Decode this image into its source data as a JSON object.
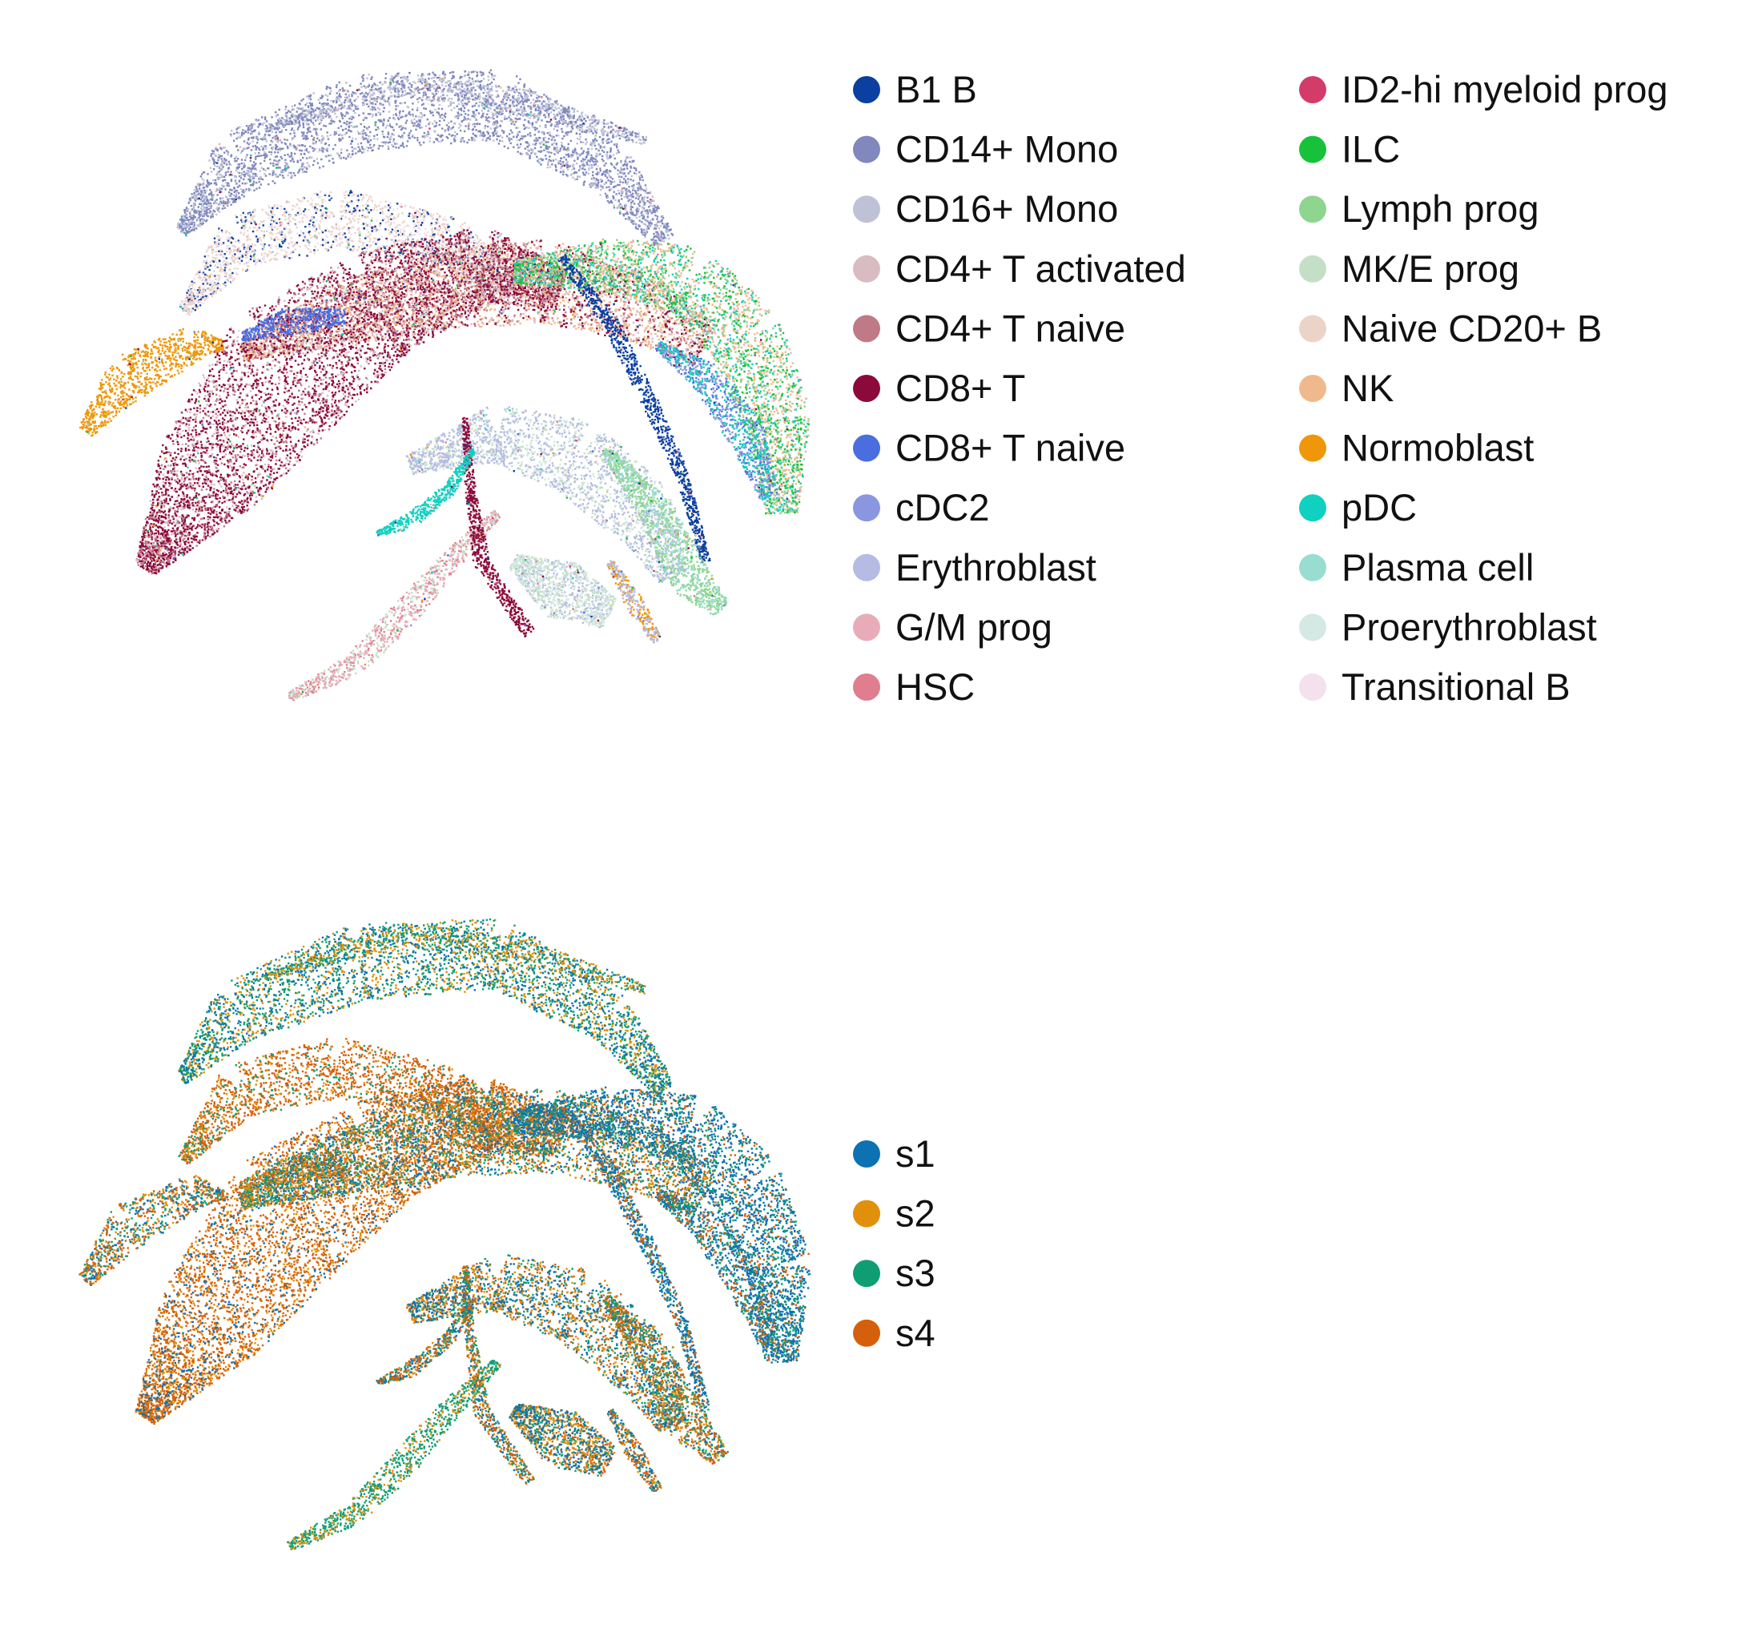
{
  "chart_data": [
    {
      "type": "scatter",
      "title": "",
      "xlabel": "",
      "ylabel": "",
      "axes_visible": false,
      "grid": false,
      "legend": {
        "placement": "right",
        "columns": 2,
        "entries": [
          {
            "label": "B1 B",
            "color": "#0b3fa0"
          },
          {
            "label": "CD14+ Mono",
            "color": "#8088be"
          },
          {
            "label": "CD16+ Mono",
            "color": "#bfc1d6"
          },
          {
            "label": "CD4+ T activated",
            "color": "#d9bcc2"
          },
          {
            "label": "CD4+ T naive",
            "color": "#c07a87"
          },
          {
            "label": "CD8+ T",
            "color": "#8c0a3b"
          },
          {
            "label": "CD8+ T naive",
            "color": "#4a6ee0"
          },
          {
            "label": "cDC2",
            "color": "#8a96e0"
          },
          {
            "label": "Erythroblast",
            "color": "#b5bbe3"
          },
          {
            "label": "G/M prog",
            "color": "#e8acb8"
          },
          {
            "label": "HSC",
            "color": "#e07d8f"
          },
          {
            "label": "ID2-hi myeloid prog",
            "color": "#d33b69"
          },
          {
            "label": "ILC",
            "color": "#17c23a"
          },
          {
            "label": "Lymph prog",
            "color": "#8ed58f"
          },
          {
            "label": "MK/E prog",
            "color": "#c5dfc6"
          },
          {
            "label": "Naive CD20+ B",
            "color": "#ecd3c7"
          },
          {
            "label": "NK",
            "color": "#f0b98d"
          },
          {
            "label": "Normoblast",
            "color": "#ef9708"
          },
          {
            "label": "pDC",
            "color": "#10d0c0"
          },
          {
            "label": "Plasma cell",
            "color": "#99ddd0"
          },
          {
            "label": "Proerythroblast",
            "color": "#d4e9e4"
          },
          {
            "label": "Transitional B",
            "color": "#f3e1ee"
          }
        ]
      }
    },
    {
      "type": "scatter",
      "title": "",
      "xlabel": "",
      "ylabel": "",
      "axes_visible": false,
      "grid": false,
      "legend": {
        "placement": "right",
        "columns": 1,
        "entries": [
          {
            "label": "s1",
            "color": "#0c72b2"
          },
          {
            "label": "s2",
            "color": "#e0900a"
          },
          {
            "label": "s3",
            "color": "#0f9e74"
          },
          {
            "label": "s4",
            "color": "#d5600b"
          }
        ]
      }
    }
  ]
}
